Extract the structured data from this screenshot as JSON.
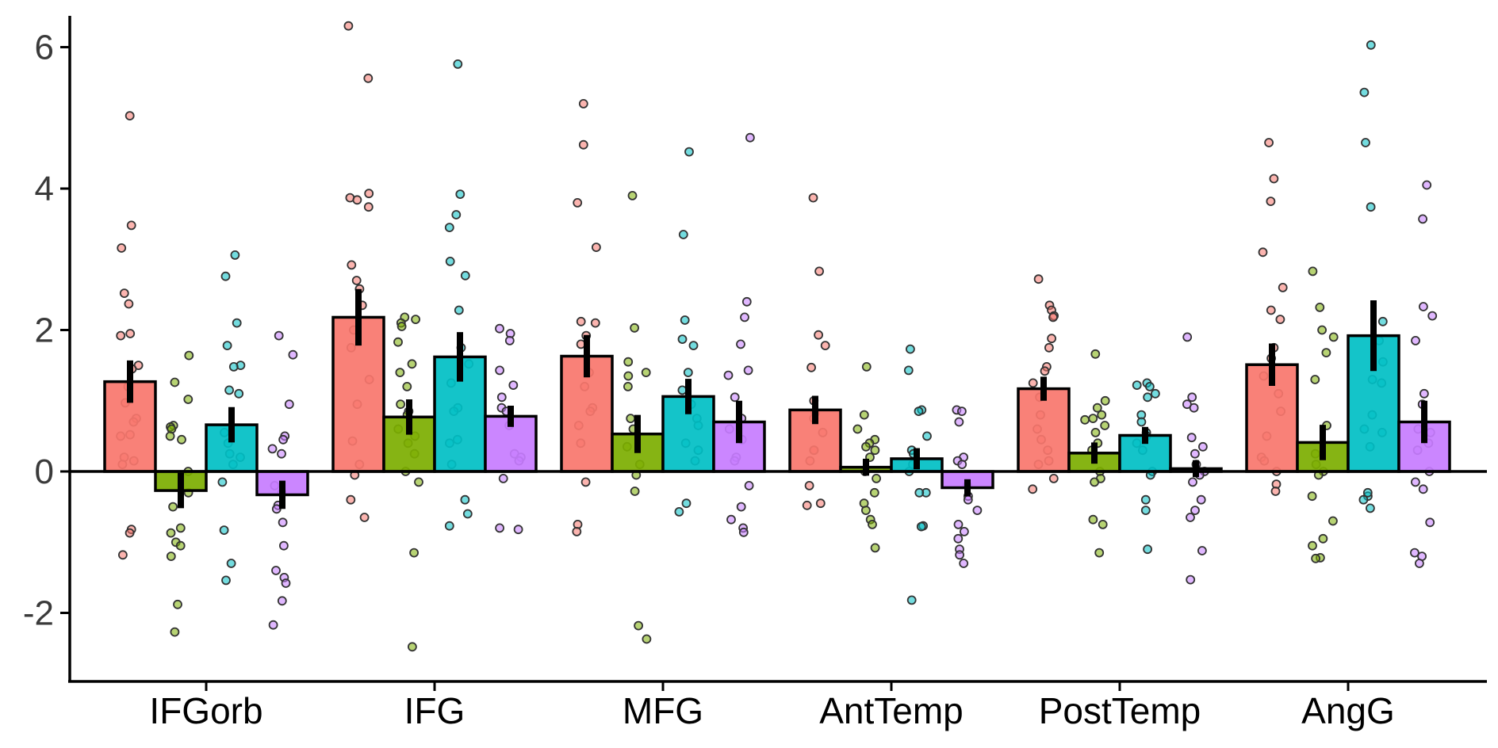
{
  "chart_data": {
    "type": "bar",
    "title": "",
    "xlabel": "",
    "ylabel": "",
    "categories": [
      "IFGorb",
      "IFG",
      "MFG",
      "AntTemp",
      "PostTemp",
      "AngG"
    ],
    "ylim": [
      -2.9,
      6.4
    ],
    "yticks": [
      -2,
      0,
      2,
      4,
      6
    ],
    "ytick_labels": [
      "-2",
      "0",
      "2",
      "4",
      "6"
    ],
    "grid": false,
    "legend": "none",
    "series": [
      {
        "color": "#F8766D",
        "values": [
          1.27,
          2.18,
          1.63,
          0.87,
          1.17,
          1.51
        ],
        "errors": [
          0.3,
          0.4,
          0.3,
          0.2,
          0.17,
          0.3
        ],
        "points": [
          [
            5.03,
            3.48,
            3.16,
            2.52,
            2.37,
            1.95,
            1.92,
            1.5,
            1.45,
            1.2,
            0.97,
            0.75,
            0.7,
            0.5,
            0.52,
            0.2,
            0.15,
            0.1,
            -0.82,
            -0.87,
            -1.18
          ],
          [
            6.3,
            5.56,
            3.93,
            3.87,
            3.84,
            3.74,
            2.92,
            2.7,
            2.58,
            2.35,
            2.0,
            1.75,
            1.3,
            0.95,
            0.43,
            0.1,
            -0.05,
            -0.4,
            -0.65
          ],
          [
            5.2,
            4.62,
            3.8,
            3.17,
            2.12,
            2.1,
            1.92,
            1.8,
            1.4,
            1.2,
            0.9,
            0.85,
            0.65,
            0.4,
            -0.15,
            -0.75,
            -0.85
          ],
          [
            3.87,
            2.83,
            1.93,
            1.78,
            1.47,
            1.0,
            0.83,
            0.75,
            0.55,
            0.3,
            0.3,
            0.15,
            -0.2,
            -0.45,
            -0.48
          ],
          [
            2.72,
            2.35,
            2.28,
            2.2,
            2.18,
            1.88,
            1.75,
            1.48,
            1.42,
            1.25,
            1.05,
            0.8,
            0.6,
            0.45,
            0.3,
            0.15,
            0.1,
            -0.1,
            -0.25
          ],
          [
            4.65,
            4.14,
            3.82,
            3.1,
            2.6,
            2.28,
            2.15,
            1.75,
            1.6,
            1.35,
            1.1,
            0.85,
            0.5,
            0.2,
            0.15,
            0.0,
            -0.18,
            -0.28
          ]
        ]
      },
      {
        "color": "#7CAE00",
        "values": [
          -0.27,
          0.77,
          0.53,
          0.06,
          0.26,
          0.41
        ],
        "errors": [
          0.25,
          0.25,
          0.27,
          0.12,
          0.15,
          0.25
        ],
        "points": [
          [
            1.64,
            1.26,
            1.02,
            0.65,
            0.63,
            0.6,
            0.5,
            0.45,
            0.0,
            -0.3,
            -0.5,
            -0.8,
            -0.87,
            -1.0,
            -1.05,
            -1.2,
            -1.88,
            -2.27
          ],
          [
            2.18,
            2.15,
            2.1,
            2.05,
            1.83,
            1.52,
            1.4,
            1.2,
            0.95,
            0.85,
            0.8,
            0.6,
            0.5,
            0.4,
            0.25,
            0.0,
            -0.15,
            -1.15,
            -2.48
          ],
          [
            3.9,
            2.03,
            1.55,
            1.4,
            1.35,
            1.2,
            0.75,
            0.6,
            0.35,
            0.1,
            -0.05,
            -0.28,
            -2.18,
            -2.37
          ],
          [
            1.48,
            0.8,
            0.6,
            0.45,
            0.4,
            0.35,
            0.3,
            0.2,
            0.0,
            -0.1,
            -0.3,
            -0.45,
            -0.55,
            -0.68,
            -0.75,
            -1.08
          ],
          [
            1.66,
            1.0,
            0.9,
            0.8,
            0.75,
            0.73,
            0.65,
            0.55,
            0.4,
            0.3,
            0.0,
            -0.1,
            -0.15,
            -0.68,
            -0.75,
            -1.15
          ],
          [
            2.83,
            2.32,
            2.0,
            1.9,
            1.68,
            1.3,
            0.65,
            0.25,
            0.1,
            0.0,
            -0.05,
            -0.35,
            -0.7,
            -0.95,
            -1.05,
            -1.22,
            -1.23
          ]
        ]
      },
      {
        "color": "#00BFC4",
        "values": [
          0.66,
          1.62,
          1.06,
          0.18,
          0.51,
          1.92
        ],
        "errors": [
          0.25,
          0.35,
          0.25,
          0.15,
          0.12,
          0.5
        ],
        "points": [
          [
            3.06,
            2.76,
            2.1,
            1.78,
            1.5,
            1.48,
            1.15,
            1.1,
            0.55,
            0.4,
            0.25,
            0.2,
            0.1,
            -0.15,
            -0.83,
            -1.3,
            -1.54
          ],
          [
            5.76,
            3.92,
            3.63,
            3.45,
            2.97,
            2.77,
            2.28,
            1.75,
            1.52,
            1.25,
            0.9,
            0.85,
            0.45,
            0.4,
            0.1,
            -0.4,
            -0.6,
            -0.77
          ],
          [
            4.52,
            3.35,
            2.14,
            1.87,
            1.78,
            1.4,
            1.15,
            0.95,
            0.75,
            0.65,
            0.4,
            0.3,
            0.15,
            -0.45,
            -0.57
          ],
          [
            1.73,
            1.43,
            0.87,
            0.85,
            0.5,
            0.3,
            0.25,
            0.1,
            0.0,
            -0.3,
            -0.3,
            -0.77,
            -0.78,
            -1.82
          ],
          [
            1.25,
            1.22,
            1.2,
            1.1,
            1.05,
            0.8,
            0.7,
            0.55,
            0.5,
            0.4,
            0.3,
            0.0,
            -0.05,
            -0.4,
            -0.55,
            -1.1
          ],
          [
            6.03,
            5.36,
            4.65,
            3.74,
            2.12,
            1.85,
            1.55,
            1.3,
            1.25,
            0.8,
            0.6,
            0.55,
            0.35,
            -0.35,
            -0.3,
            -0.4,
            -0.52
          ]
        ]
      },
      {
        "color": "#C77CFF",
        "values": [
          -0.33,
          0.78,
          0.7,
          -0.23,
          0.04,
          0.7
        ],
        "errors": [
          0.2,
          0.15,
          0.3,
          0.12,
          0.12,
          0.3
        ],
        "points": [
          [
            1.92,
            1.65,
            0.95,
            0.5,
            0.45,
            0.32,
            0.25,
            -0.2,
            -0.3,
            -0.48,
            -0.53,
            -0.72,
            -1.05,
            -1.4,
            -1.5,
            -1.58,
            -1.83,
            -2.17
          ],
          [
            2.02,
            1.95,
            1.85,
            1.43,
            1.22,
            1.05,
            0.9,
            0.85,
            0.65,
            0.25,
            0.2,
            0.15,
            -0.1,
            -0.8,
            -0.82
          ],
          [
            4.72,
            2.4,
            2.18,
            1.8,
            1.43,
            1.36,
            1.05,
            0.75,
            0.6,
            0.45,
            0.2,
            0.15,
            -0.2,
            -0.5,
            -0.68,
            -0.8,
            -0.86
          ],
          [
            0.87,
            0.85,
            0.7,
            0.2,
            0.15,
            0.1,
            -0.2,
            -0.35,
            -0.4,
            -0.55,
            -0.75,
            -0.85,
            -0.95,
            -1.1,
            -1.18,
            -1.3
          ],
          [
            1.9,
            1.05,
            0.95,
            0.9,
            0.48,
            0.35,
            0.25,
            0.1,
            0.0,
            -0.05,
            -0.15,
            -0.4,
            -0.55,
            -0.65,
            -1.12,
            -1.53
          ],
          [
            4.05,
            3.57,
            2.33,
            2.2,
            1.85,
            1.1,
            0.95,
            0.6,
            0.55,
            0.4,
            0.3,
            0.0,
            -0.15,
            -0.25,
            -0.72,
            -1.15,
            -1.2,
            -1.3
          ]
        ]
      }
    ]
  }
}
